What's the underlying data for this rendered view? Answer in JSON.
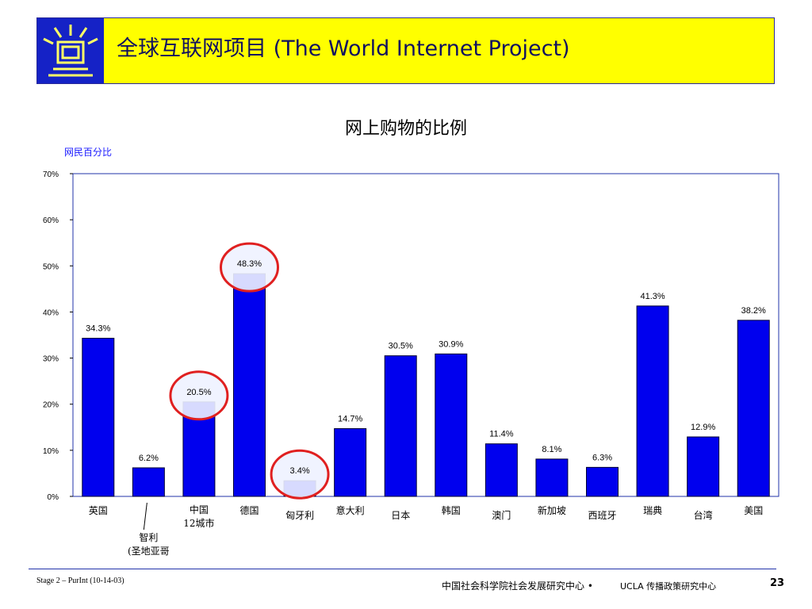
{
  "header": {
    "title": "全球互联网项目 (The World Internet Project)"
  },
  "colors": {
    "bar": "#0000ee",
    "highlight": "#e02020",
    "header_bg": "#ffff00",
    "logo_bg": "#1522c6"
  },
  "chart_data": {
    "type": "bar",
    "title": "网上购物的比例",
    "ylabel": "网民百分比",
    "xlabel": "",
    "ylim": [
      0,
      70
    ],
    "yticks": [
      "0%",
      "10%",
      "20%",
      "30%",
      "40%",
      "50%",
      "60%",
      "70%"
    ],
    "grid": false,
    "categories": [
      "英国",
      "智利",
      "中国",
      "德国",
      "匈牙利",
      "意大利",
      "日本",
      "韩国",
      "澳门",
      "新加坡",
      "西班牙",
      "瑞典",
      "台湾",
      "美国"
    ],
    "category_sublabels": [
      "",
      "(圣地亚哥",
      "12城市",
      "",
      "",
      "",
      "",
      "",
      "",
      "",
      "",
      "",
      "",
      ""
    ],
    "values": [
      34.3,
      6.2,
      20.5,
      48.3,
      3.4,
      14.7,
      30.5,
      30.9,
      11.4,
      8.1,
      6.3,
      41.3,
      12.9,
      38.2
    ],
    "value_labels": [
      "34.3%",
      "6.2%",
      "20.5%",
      "48.3%",
      "3.4%",
      "14.7%",
      "30.5%",
      "30.9%",
      "11.4%",
      "8.1%",
      "6.3%",
      "41.3%",
      "12.9%",
      "38.2%"
    ],
    "highlighted": [
      "中国",
      "德国",
      "匈牙利"
    ]
  },
  "footer": {
    "left": "Stage 2 – PurInt (10-14-03)",
    "center": "中国社会科学院社会发展研究中心 •",
    "center2": "UCLA 传播政策研究中心",
    "page": "23"
  }
}
